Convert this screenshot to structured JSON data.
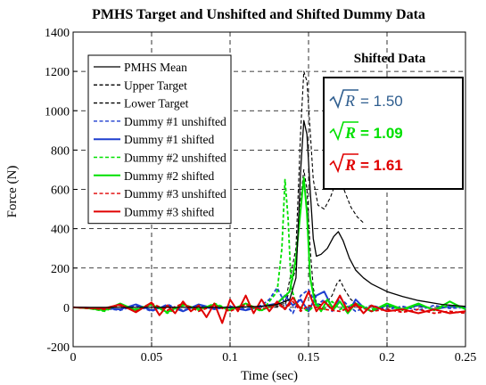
{
  "chart_data": {
    "type": "line",
    "title": "PMHS Target and Unshifted and Shifted Dummy Data",
    "xlabel": "Time (sec)",
    "ylabel": "Force (N)",
    "xlim": [
      0,
      0.25
    ],
    "ylim": [
      -200,
      1400
    ],
    "x_ticks": [
      "0",
      "0.05",
      "0.1",
      "0.15",
      "0.2",
      "0.25"
    ],
    "y_ticks": [
      "-200",
      "0",
      "200",
      "400",
      "600",
      "800",
      "1000",
      "1200",
      "1400"
    ],
    "grid": true,
    "legend_position": "top-left",
    "series": [
      {
        "name": "PMHS Mean",
        "color": "#000000",
        "dash": "solid",
        "points": [
          [
            0,
            0
          ],
          [
            0.02,
            0
          ],
          [
            0.04,
            0
          ],
          [
            0.06,
            0
          ],
          [
            0.08,
            0
          ],
          [
            0.1,
            0
          ],
          [
            0.12,
            5
          ],
          [
            0.13,
            15
          ],
          [
            0.138,
            40
          ],
          [
            0.142,
            150
          ],
          [
            0.145,
            700
          ],
          [
            0.147,
            950
          ],
          [
            0.149,
            880
          ],
          [
            0.151,
            600
          ],
          [
            0.153,
            350
          ],
          [
            0.155,
            260
          ],
          [
            0.158,
            270
          ],
          [
            0.162,
            300
          ],
          [
            0.166,
            360
          ],
          [
            0.169,
            385
          ],
          [
            0.172,
            340
          ],
          [
            0.176,
            250
          ],
          [
            0.18,
            190
          ],
          [
            0.185,
            150
          ],
          [
            0.19,
            120
          ],
          [
            0.2,
            80
          ],
          [
            0.21,
            55
          ],
          [
            0.22,
            35
          ],
          [
            0.235,
            15
          ],
          [
            0.25,
            5
          ]
        ]
      },
      {
        "name": "Upper Target",
        "color": "#000000",
        "dash": "dash",
        "points": [
          [
            0.125,
            5
          ],
          [
            0.135,
            20
          ],
          [
            0.142,
            300
          ],
          [
            0.145,
            900
          ],
          [
            0.147,
            1200
          ],
          [
            0.149,
            1150
          ],
          [
            0.151,
            900
          ],
          [
            0.153,
            650
          ],
          [
            0.156,
            520
          ],
          [
            0.16,
            500
          ],
          [
            0.164,
            560
          ],
          [
            0.168,
            650
          ],
          [
            0.17,
            660
          ],
          [
            0.173,
            590
          ],
          [
            0.177,
            510
          ],
          [
            0.181,
            460
          ],
          [
            0.185,
            430
          ]
        ]
      },
      {
        "name": "Lower Target",
        "color": "#000000",
        "dash": "dash",
        "points": [
          [
            0.125,
            0
          ],
          [
            0.135,
            10
          ],
          [
            0.142,
            200
          ],
          [
            0.145,
            550
          ],
          [
            0.147,
            700
          ],
          [
            0.149,
            600
          ],
          [
            0.151,
            300
          ],
          [
            0.153,
            100
          ],
          [
            0.155,
            20
          ],
          [
            0.16,
            10
          ],
          [
            0.165,
            60
          ],
          [
            0.168,
            120
          ],
          [
            0.17,
            140
          ],
          [
            0.173,
            90
          ],
          [
            0.177,
            40
          ],
          [
            0.182,
            10
          ],
          [
            0.185,
            0
          ]
        ]
      },
      {
        "name": "Dummy #1 unshifted",
        "color": "#1f3fcf",
        "dash": "dash",
        "points": [
          [
            0,
            0
          ],
          [
            0.02,
            -5
          ],
          [
            0.03,
            -15
          ],
          [
            0.04,
            10
          ],
          [
            0.05,
            -20
          ],
          [
            0.06,
            15
          ],
          [
            0.07,
            -15
          ],
          [
            0.08,
            10
          ],
          [
            0.09,
            -10
          ],
          [
            0.1,
            5
          ],
          [
            0.11,
            -10
          ],
          [
            0.12,
            10
          ],
          [
            0.125,
            40
          ],
          [
            0.13,
            100
          ],
          [
            0.135,
            20
          ],
          [
            0.14,
            -30
          ],
          [
            0.145,
            60
          ],
          [
            0.15,
            90
          ],
          [
            0.155,
            10
          ],
          [
            0.16,
            40
          ],
          [
            0.165,
            -20
          ],
          [
            0.17,
            50
          ],
          [
            0.175,
            10
          ],
          [
            0.18,
            -20
          ],
          [
            0.19,
            10
          ],
          [
            0.2,
            -10
          ],
          [
            0.21,
            5
          ],
          [
            0.22,
            -15
          ],
          [
            0.23,
            10
          ],
          [
            0.24,
            -5
          ],
          [
            0.25,
            0
          ]
        ]
      },
      {
        "name": "Dummy #1 shifted",
        "color": "#1f3fcf",
        "dash": "solid",
        "points": [
          [
            0,
            0
          ],
          [
            0.02,
            -5
          ],
          [
            0.03,
            -10
          ],
          [
            0.04,
            15
          ],
          [
            0.05,
            -15
          ],
          [
            0.06,
            10
          ],
          [
            0.07,
            -20
          ],
          [
            0.08,
            15
          ],
          [
            0.09,
            -5
          ],
          [
            0.1,
            0
          ],
          [
            0.11,
            -15
          ],
          [
            0.12,
            5
          ],
          [
            0.13,
            20
          ],
          [
            0.135,
            60
          ],
          [
            0.14,
            10
          ],
          [
            0.145,
            40
          ],
          [
            0.15,
            -20
          ],
          [
            0.155,
            60
          ],
          [
            0.16,
            80
          ],
          [
            0.165,
            0
          ],
          [
            0.17,
            30
          ],
          [
            0.175,
            -30
          ],
          [
            0.18,
            40
          ],
          [
            0.185,
            0
          ],
          [
            0.19,
            -20
          ],
          [
            0.2,
            10
          ],
          [
            0.21,
            -10
          ],
          [
            0.22,
            10
          ],
          [
            0.23,
            -10
          ],
          [
            0.24,
            5
          ],
          [
            0.25,
            0
          ]
        ]
      },
      {
        "name": "Dummy #2 unshifted",
        "color": "#00e000",
        "dash": "dash",
        "points": [
          [
            0,
            0
          ],
          [
            0.01,
            -5
          ],
          [
            0.02,
            -20
          ],
          [
            0.03,
            15
          ],
          [
            0.04,
            -10
          ],
          [
            0.05,
            20
          ],
          [
            0.06,
            -30
          ],
          [
            0.07,
            10
          ],
          [
            0.08,
            -15
          ],
          [
            0.09,
            20
          ],
          [
            0.1,
            -10
          ],
          [
            0.11,
            15
          ],
          [
            0.12,
            -20
          ],
          [
            0.125,
            30
          ],
          [
            0.13,
            80
          ],
          [
            0.133,
            300
          ],
          [
            0.135,
            650
          ],
          [
            0.137,
            450
          ],
          [
            0.139,
            100
          ],
          [
            0.142,
            20
          ],
          [
            0.145,
            0
          ],
          [
            0.15,
            -20
          ],
          [
            0.155,
            20
          ],
          [
            0.16,
            -10
          ],
          [
            0.165,
            30
          ],
          [
            0.17,
            -10
          ],
          [
            0.18,
            20
          ],
          [
            0.19,
            -10
          ],
          [
            0.2,
            10
          ],
          [
            0.21,
            -15
          ],
          [
            0.22,
            15
          ],
          [
            0.23,
            -10
          ],
          [
            0.24,
            10
          ],
          [
            0.25,
            -5
          ]
        ]
      },
      {
        "name": "Dummy #2 shifted",
        "color": "#00e000",
        "dash": "solid",
        "points": [
          [
            0,
            0
          ],
          [
            0.01,
            -5
          ],
          [
            0.02,
            -15
          ],
          [
            0.03,
            20
          ],
          [
            0.04,
            -15
          ],
          [
            0.05,
            15
          ],
          [
            0.06,
            -25
          ],
          [
            0.07,
            15
          ],
          [
            0.08,
            -10
          ],
          [
            0.09,
            15
          ],
          [
            0.1,
            -15
          ],
          [
            0.11,
            20
          ],
          [
            0.12,
            -15
          ],
          [
            0.13,
            20
          ],
          [
            0.138,
            80
          ],
          [
            0.142,
            250
          ],
          [
            0.145,
            500
          ],
          [
            0.147,
            660
          ],
          [
            0.149,
            480
          ],
          [
            0.151,
            150
          ],
          [
            0.154,
            30
          ],
          [
            0.158,
            -20
          ],
          [
            0.162,
            40
          ],
          [
            0.166,
            -10
          ],
          [
            0.17,
            30
          ],
          [
            0.175,
            -30
          ],
          [
            0.18,
            20
          ],
          [
            0.19,
            -20
          ],
          [
            0.2,
            20
          ],
          [
            0.21,
            -10
          ],
          [
            0.22,
            20
          ],
          [
            0.23,
            -15
          ],
          [
            0.24,
            30
          ],
          [
            0.25,
            -10
          ]
        ]
      },
      {
        "name": "Dummy #3 unshifted",
        "color": "#e00000",
        "dash": "dash",
        "points": [
          [
            0,
            0
          ],
          [
            0.02,
            -10
          ],
          [
            0.03,
            10
          ],
          [
            0.04,
            -20
          ],
          [
            0.05,
            20
          ],
          [
            0.06,
            -15
          ],
          [
            0.07,
            20
          ],
          [
            0.08,
            -20
          ],
          [
            0.09,
            10
          ],
          [
            0.1,
            -20
          ],
          [
            0.11,
            15
          ],
          [
            0.12,
            -10
          ],
          [
            0.13,
            20
          ],
          [
            0.135,
            -10
          ],
          [
            0.14,
            30
          ],
          [
            0.145,
            -20
          ],
          [
            0.15,
            10
          ],
          [
            0.16,
            -10
          ],
          [
            0.17,
            -20
          ],
          [
            0.18,
            10
          ],
          [
            0.19,
            -20
          ],
          [
            0.2,
            -10
          ],
          [
            0.21,
            -25
          ],
          [
            0.22,
            -10
          ],
          [
            0.23,
            -30
          ],
          [
            0.24,
            -20
          ],
          [
            0.25,
            -30
          ]
        ]
      },
      {
        "name": "Dummy #3 shifted",
        "color": "#e00000",
        "dash": "solid",
        "points": [
          [
            0,
            0
          ],
          [
            0.02,
            -5
          ],
          [
            0.03,
            15
          ],
          [
            0.04,
            -25
          ],
          [
            0.05,
            25
          ],
          [
            0.055,
            -40
          ],
          [
            0.06,
            10
          ],
          [
            0.065,
            -30
          ],
          [
            0.07,
            30
          ],
          [
            0.075,
            -20
          ],
          [
            0.08,
            10
          ],
          [
            0.085,
            -50
          ],
          [
            0.09,
            20
          ],
          [
            0.095,
            -80
          ],
          [
            0.1,
            40
          ],
          [
            0.105,
            -20
          ],
          [
            0.11,
            60
          ],
          [
            0.115,
            -30
          ],
          [
            0.12,
            40
          ],
          [
            0.125,
            -20
          ],
          [
            0.13,
            30
          ],
          [
            0.135,
            -10
          ],
          [
            0.14,
            50
          ],
          [
            0.145,
            -10
          ],
          [
            0.15,
            80
          ],
          [
            0.155,
            -20
          ],
          [
            0.16,
            30
          ],
          [
            0.165,
            -10
          ],
          [
            0.17,
            60
          ],
          [
            0.175,
            -20
          ],
          [
            0.18,
            20
          ],
          [
            0.185,
            -30
          ],
          [
            0.19,
            10
          ],
          [
            0.2,
            -20
          ],
          [
            0.21,
            -10
          ],
          [
            0.22,
            -30
          ],
          [
            0.23,
            -10
          ],
          [
            0.24,
            -30
          ],
          [
            0.25,
            -20
          ]
        ]
      }
    ],
    "annotation": {
      "heading": "Shifted Data",
      "items": [
        {
          "symbol": "R",
          "value": "1.50",
          "color": "#2f5e8f",
          "weight": "normal"
        },
        {
          "symbol": "R",
          "value": "1.09",
          "color": "#00e000",
          "weight": "bold"
        },
        {
          "symbol": "R",
          "value": "1.61",
          "color": "#e00000",
          "weight": "bold"
        }
      ]
    }
  }
}
